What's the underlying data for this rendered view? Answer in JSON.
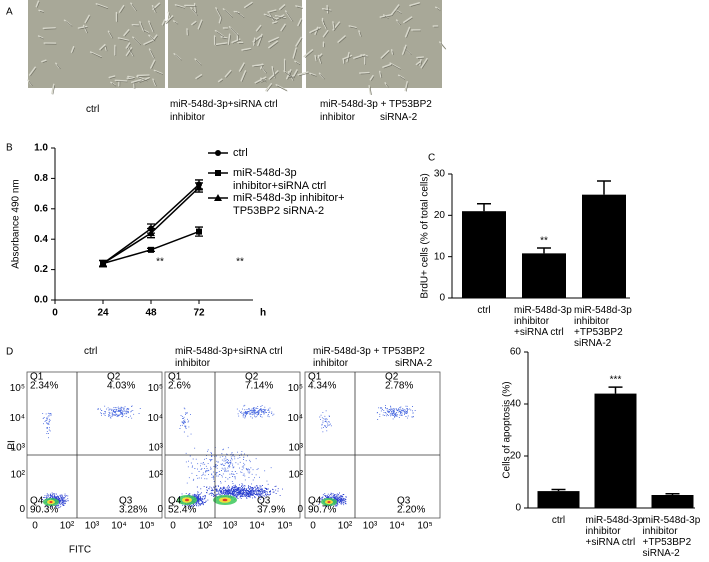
{
  "panel_labels": [
    "A",
    "B",
    "C",
    "D"
  ],
  "micrographs": {
    "captions": [
      [
        "ctrl"
      ],
      [
        "miR-548d-3p+siRNA ctrl",
        "inhibitor"
      ],
      [
        "miR-548d-3p + TP53BP2",
        "inhibitor",
        "siRNA-2"
      ]
    ]
  },
  "flow": {
    "titles": [
      [
        "ctrl"
      ],
      [
        "miR-548d-3p+siRNA ctrl",
        "inhibitor"
      ],
      [
        "miR-548d-3p + TP53BP2",
        "inhibitor",
        "siRNA-2"
      ]
    ],
    "quadrants": [
      [
        "2.34%",
        "4.03%",
        "90.3%",
        "3.28%"
      ],
      [
        "2.6%",
        "7.14%",
        "52.4%",
        "37.9%"
      ],
      [
        "4.34%",
        "2.78%",
        "90.7%",
        "2.20%"
      ]
    ],
    "quadrant_names": [
      "Q1",
      "Q2",
      "Q4",
      "Q3"
    ],
    "ticks": [
      "0",
      "10²",
      "10³",
      "10⁴",
      "10⁵"
    ],
    "xlabel": "FITC",
    "ylabel": "PI"
  },
  "chart_data": [
    {
      "type": "line",
      "x": [
        24,
        48,
        72
      ],
      "xlim": [
        0,
        104
      ],
      "xticks": [
        0,
        24,
        48,
        72
      ],
      "xlabel": "h",
      "ylabel": "Absorbance 490 nm",
      "ylim": [
        0,
        1
      ],
      "yticks": [
        {
          "value": 0,
          "label": "0.0"
        },
        0.2,
        0.4,
        0.6,
        0.8,
        {
          "value": 1,
          "label": "1.0"
        }
      ],
      "series": [
        {
          "name": "ctrl",
          "color": "#000000",
          "marker": "circle",
          "values": [
            0.24,
            0.47,
            0.76
          ],
          "errors": [
            0.02,
            0.03,
            0.03
          ]
        },
        {
          "name": "miR-548d-3p inhibitor+siRNA ctrl",
          "color": "#000000",
          "marker": "square",
          "values": [
            0.24,
            0.33,
            0.45
          ],
          "errors": [
            0.02,
            0.01,
            0.03
          ]
        },
        {
          "name": "miR-548d-3p inhibitor+ TP53BP2 siRNA-2",
          "color": "#000000",
          "marker": "triangle",
          "values": [
            0.24,
            0.44,
            0.74
          ],
          "errors": [
            0.02,
            0.03,
            0.03
          ]
        }
      ],
      "annotations": [
        "**",
        "**"
      ]
    },
    {
      "type": "bar",
      "ylabel": "BrdU+ cells (% of total cells)",
      "categories": [
        "ctrl",
        "miR-548d-3p inhibitor +siRNA ctrl",
        "miR-548d-3p inhibitor +TP53BP2 siRNA-2"
      ],
      "values": [
        21,
        10.8,
        25
      ],
      "errors": [
        1.8,
        1.3,
        3.3
      ],
      "color": "#000000",
      "ylim": [
        0,
        30
      ],
      "yticks": [
        0,
        10,
        20,
        30
      ],
      "annotations": [
        "**"
      ]
    },
    {
      "type": "bar",
      "ylabel": "Cells of apoptosis (%)",
      "categories": [
        "ctrl",
        "miR-548d-3p inhibitor +siRNA ctrl",
        "miR-548d-3p inhibitor +TP53BP2 siRNA-2"
      ],
      "values": [
        6.5,
        44,
        5
      ],
      "errors": [
        0.6,
        2.5,
        0.5
      ],
      "color": "#000000",
      "ylim": [
        0,
        60
      ],
      "yticks": [
        0,
        20,
        40,
        60
      ],
      "annotations": [
        "***"
      ]
    }
  ]
}
